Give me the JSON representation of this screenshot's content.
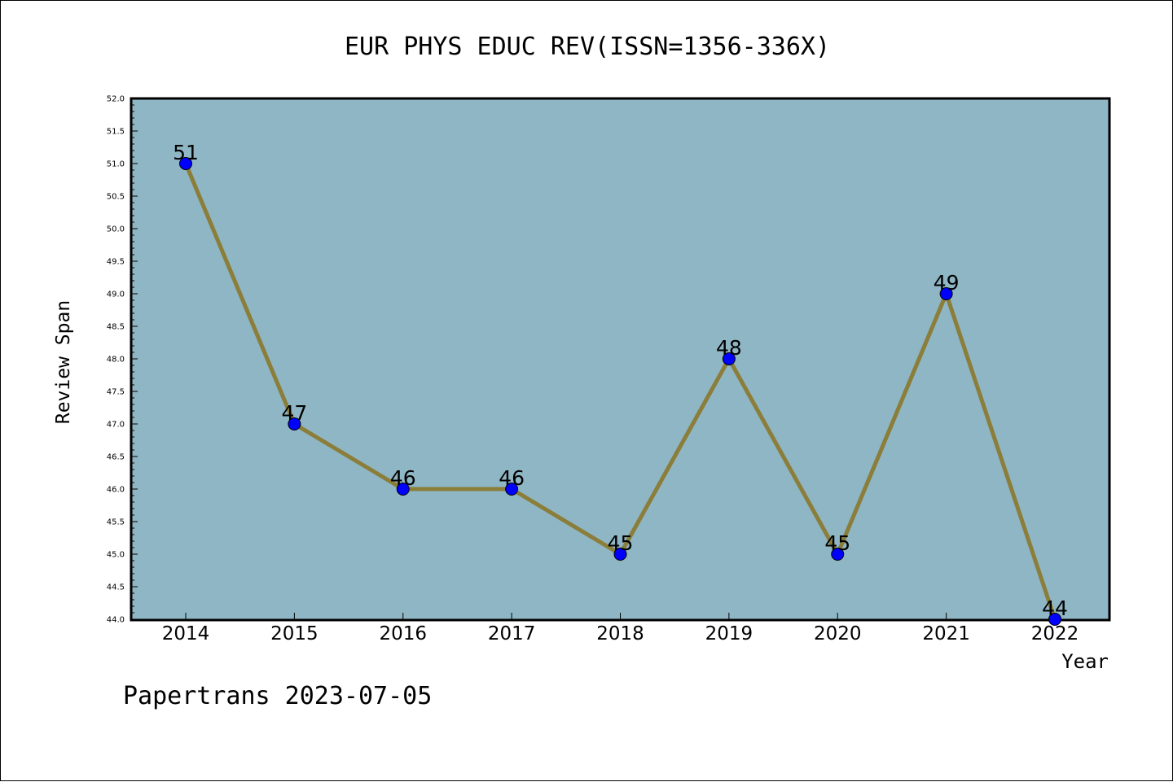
{
  "chart_data": {
    "type": "line",
    "title": "EUR PHYS EDUC REV(ISSN=1356-336X)",
    "xlabel": "Year",
    "ylabel": "Review Span",
    "x": [
      "2014",
      "2015",
      "2016",
      "2017",
      "2018",
      "2019",
      "2020",
      "2021",
      "2022"
    ],
    "series": [
      {
        "values": [
          51,
          47,
          46,
          46,
          45,
          48,
          45,
          49,
          44
        ]
      }
    ],
    "data_labels": [
      "51",
      "47",
      "46",
      "46",
      "45",
      "48",
      "45",
      "49",
      "44"
    ],
    "ylim": [
      44.0,
      52.0
    ],
    "yticks": [
      "44.0",
      "44.5",
      "45.0",
      "45.5",
      "46.0",
      "46.5",
      "47.0",
      "47.5",
      "48.0",
      "48.5",
      "49.0",
      "49.5",
      "50.0",
      "50.5",
      "51.0",
      "51.5",
      "52.0"
    ],
    "grid": false,
    "legend": "none",
    "colors": {
      "plot_background": "#8fb6c4",
      "line": "#8b7d3a",
      "marker": "#0000ff"
    }
  },
  "footer": "Papertrans 2023-07-05"
}
